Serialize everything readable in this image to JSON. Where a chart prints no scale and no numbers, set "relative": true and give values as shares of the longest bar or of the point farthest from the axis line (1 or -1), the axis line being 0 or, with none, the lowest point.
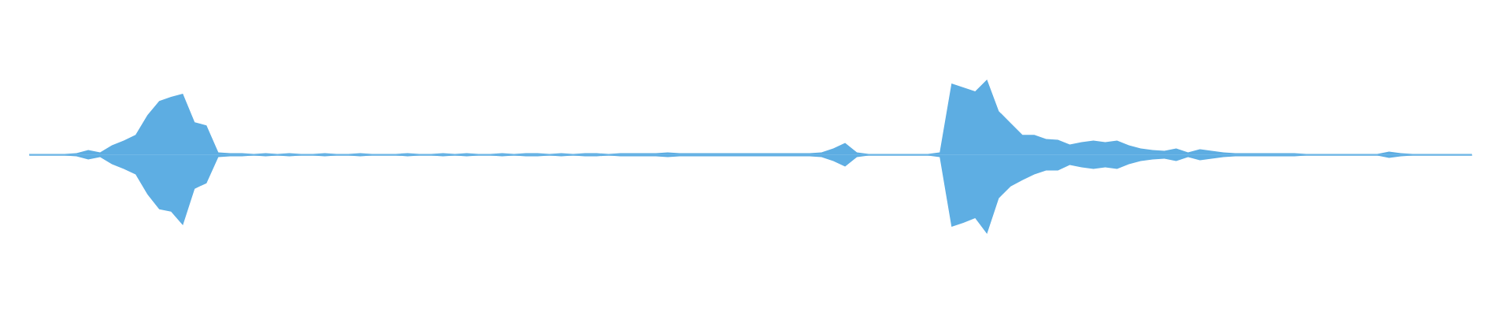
{
  "chart_data": {
    "type": "area",
    "relative": true,
    "categories": [
      null,
      null,
      null,
      null,
      null,
      null,
      null,
      null,
      null,
      null,
      null,
      null,
      null,
      null,
      null,
      null,
      null,
      null,
      null,
      null,
      null,
      null,
      null,
      null,
      null,
      null,
      null,
      null,
      null,
      null,
      null,
      null,
      null,
      null,
      null,
      null,
      null,
      null,
      null,
      null,
      null,
      null,
      null,
      null,
      null,
      null,
      null,
      null,
      null,
      null,
      null,
      null,
      null,
      null,
      null,
      null,
      null,
      null,
      null,
      null,
      null,
      null,
      null,
      null,
      null,
      null,
      null,
      null,
      null,
      null,
      null,
      null,
      null,
      null,
      null,
      null,
      null,
      null,
      null,
      null,
      null,
      null,
      null,
      null,
      null,
      null,
      null,
      null,
      null,
      null,
      null,
      null,
      null,
      null,
      null,
      null,
      null,
      null,
      null,
      null,
      null,
      null,
      null,
      null,
      null,
      null,
      null,
      null,
      null,
      null,
      null,
      null,
      null,
      null,
      null,
      null,
      null,
      null,
      null,
      null,
      null,
      null,
      null
    ],
    "series": [
      {
        "color": "#5dade2",
        "values": [
          0.01,
          0.01,
          0.01,
          0.01,
          0.02,
          0.06,
          0.03,
          0.12,
          0.18,
          0.25,
          0.5,
          0.68,
          0.73,
          0.77,
          0.41,
          0.37,
          0.03,
          0.02,
          0.02,
          0.01,
          0.02,
          0.01,
          0.02,
          0.01,
          0.01,
          0.02,
          0.01,
          0.01,
          0.02,
          0.01,
          0.01,
          0.01,
          0.02,
          0.01,
          0.01,
          0.02,
          0.01,
          0.02,
          0.01,
          0.01,
          0.02,
          0.01,
          0.02,
          0.02,
          0.01,
          0.02,
          0.01,
          0.02,
          0.02,
          0.01,
          0.02,
          0.02,
          0.02,
          0.02,
          0.03,
          0.02,
          0.02,
          0.02,
          0.02,
          0.02,
          0.02,
          0.02,
          0.02,
          0.02,
          0.02,
          0.02,
          0.02,
          0.03,
          0.08,
          0.15,
          0.03,
          0.01,
          0.01,
          0.01,
          0.01,
          0.01,
          0.01,
          0.03,
          0.9,
          0.85,
          0.8,
          0.95,
          0.55,
          0.4,
          0.25,
          0.25,
          0.2,
          0.19,
          0.13,
          0.16,
          0.18,
          0.16,
          0.18,
          0.12,
          0.08,
          0.06,
          0.05,
          0.08,
          0.03,
          0.07,
          0.05,
          0.03,
          0.02,
          0.02,
          0.02,
          0.02,
          0.02,
          0.02,
          0.01,
          0.01,
          0.01,
          0.01,
          0.01,
          0.01,
          0.01,
          0.04,
          0.02,
          0.01,
          0.01,
          0.01,
          0.01,
          0.01,
          0.01
        ]
      },
      {
        "color": "#5eaee3",
        "values": [
          -0.01,
          -0.01,
          -0.01,
          -0.01,
          -0.02,
          -0.06,
          -0.03,
          -0.12,
          -0.18,
          -0.25,
          -0.5,
          -0.69,
          -0.72,
          -0.89,
          -0.43,
          -0.36,
          -0.03,
          -0.02,
          -0.02,
          -0.01,
          -0.02,
          -0.01,
          -0.02,
          -0.01,
          -0.01,
          -0.02,
          -0.01,
          -0.01,
          -0.02,
          -0.01,
          -0.01,
          -0.01,
          -0.02,
          -0.01,
          -0.01,
          -0.02,
          -0.01,
          -0.02,
          -0.01,
          -0.01,
          -0.02,
          -0.01,
          -0.02,
          -0.02,
          -0.01,
          -0.02,
          -0.01,
          -0.02,
          -0.02,
          -0.01,
          -0.02,
          -0.02,
          -0.02,
          -0.02,
          -0.03,
          -0.02,
          -0.02,
          -0.02,
          -0.02,
          -0.02,
          -0.02,
          -0.02,
          -0.02,
          -0.02,
          -0.02,
          -0.02,
          -0.02,
          -0.03,
          -0.08,
          -0.15,
          -0.03,
          -0.01,
          -0.01,
          -0.01,
          -0.01,
          -0.01,
          -0.01,
          -0.03,
          -0.91,
          -0.86,
          -0.8,
          -1.0,
          -0.55,
          -0.4,
          -0.32,
          -0.25,
          -0.2,
          -0.2,
          -0.13,
          -0.16,
          -0.18,
          -0.16,
          -0.18,
          -0.12,
          -0.08,
          -0.06,
          -0.05,
          -0.08,
          -0.03,
          -0.07,
          -0.05,
          -0.03,
          -0.02,
          -0.02,
          -0.02,
          -0.02,
          -0.02,
          -0.02,
          -0.01,
          -0.01,
          -0.01,
          -0.01,
          -0.01,
          -0.01,
          -0.01,
          -0.04,
          -0.02,
          -0.01,
          -0.01,
          -0.01,
          -0.01,
          -0.01,
          -0.01
        ]
      }
    ]
  }
}
